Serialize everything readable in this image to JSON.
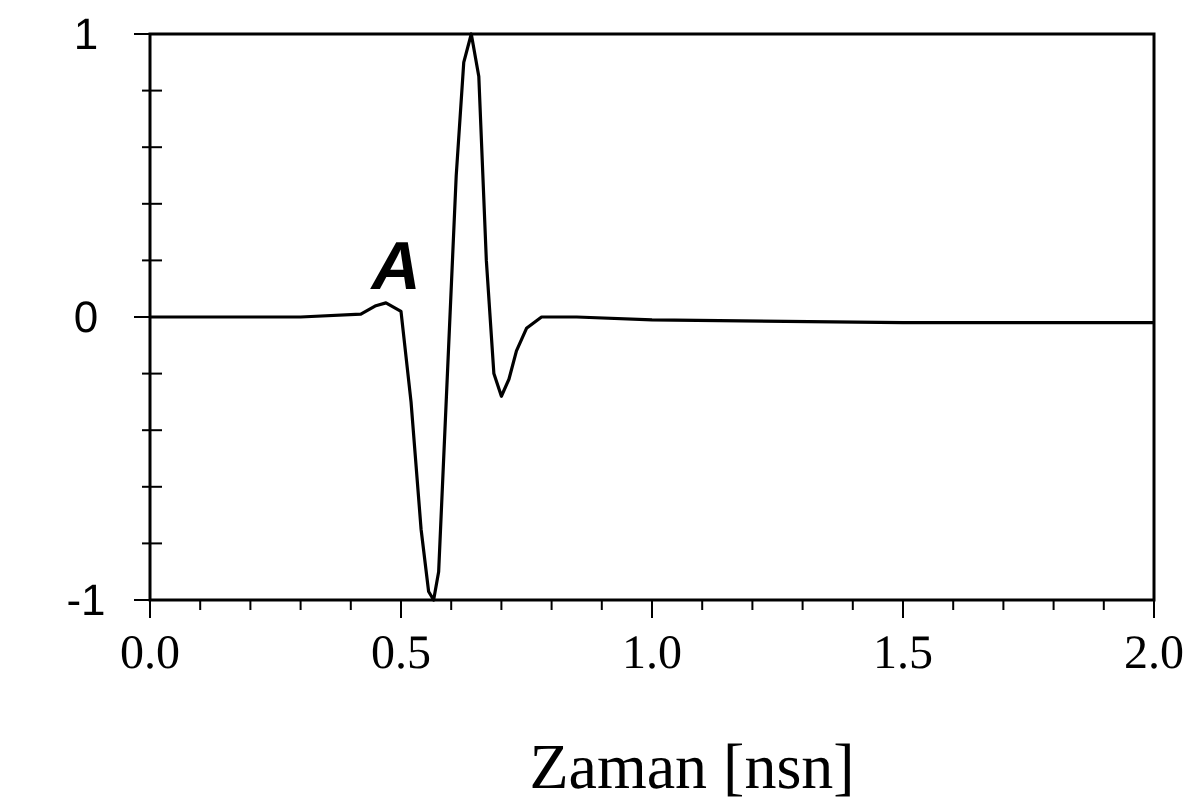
{
  "chart_data": {
    "type": "line",
    "xlabel": "Zaman [nsn]",
    "xlim": [
      0,
      2
    ],
    "ylim": [
      -1,
      1
    ],
    "xticks": [
      {
        "value": 0,
        "label": "0.0"
      },
      {
        "value": 0.1,
        "label": null
      },
      {
        "value": 0.2,
        "label": null
      },
      {
        "value": 0.3,
        "label": null
      },
      {
        "value": 0.4,
        "label": null
      },
      {
        "value": 0.5,
        "label": "0.5"
      },
      {
        "value": 0.6,
        "label": null
      },
      {
        "value": 0.7,
        "label": null
      },
      {
        "value": 0.8,
        "label": null
      },
      {
        "value": 0.9,
        "label": null
      },
      {
        "value": 1,
        "label": "1.0"
      },
      {
        "value": 1.1,
        "label": null
      },
      {
        "value": 1.2,
        "label": null
      },
      {
        "value": 1.3,
        "label": null
      },
      {
        "value": 1.4,
        "label": null
      },
      {
        "value": 1.5,
        "label": "1.5"
      },
      {
        "value": 1.6,
        "label": null
      },
      {
        "value": 1.7,
        "label": null
      },
      {
        "value": 1.8,
        "label": null
      },
      {
        "value": 1.9,
        "label": null
      },
      {
        "value": 2,
        "label": "2.0"
      }
    ],
    "yticks": [
      -1,
      {
        "value": -0.8,
        "label": null
      },
      {
        "value": -0.6,
        "label": null
      },
      {
        "value": -0.4,
        "label": null
      },
      {
        "value": -0.2,
        "label": null
      },
      0,
      {
        "value": 0.2,
        "label": null
      },
      {
        "value": 0.4,
        "label": null
      },
      {
        "value": 0.6,
        "label": null
      },
      {
        "value": 0.8,
        "label": null
      },
      1
    ],
    "x": [
      0,
      0.3,
      0.42,
      0.45,
      0.47,
      0.5,
      0.52,
      0.54,
      0.555,
      0.565,
      0.575,
      0.59,
      0.61,
      0.625,
      0.64,
      0.655,
      0.67,
      0.685,
      0.7,
      0.715,
      0.73,
      0.75,
      0.78,
      0.85,
      1.0,
      1.5,
      2.0
    ],
    "series": [
      {
        "color": "#000000",
        "values": [
          0,
          0,
          0.01,
          0.04,
          0.05,
          0.02,
          -0.3,
          -0.75,
          -0.97,
          -1,
          -0.9,
          -0.3,
          0.5,
          0.9,
          1,
          0.85,
          0.2,
          -0.2,
          -0.28,
          -0.22,
          -0.12,
          -0.04,
          0,
          0,
          -0.01,
          -0.02,
          -0.02
        ]
      }
    ],
    "annotations": [
      "A"
    ],
    "grid": false,
    "marker": "none",
    "line_style": "solid"
  }
}
